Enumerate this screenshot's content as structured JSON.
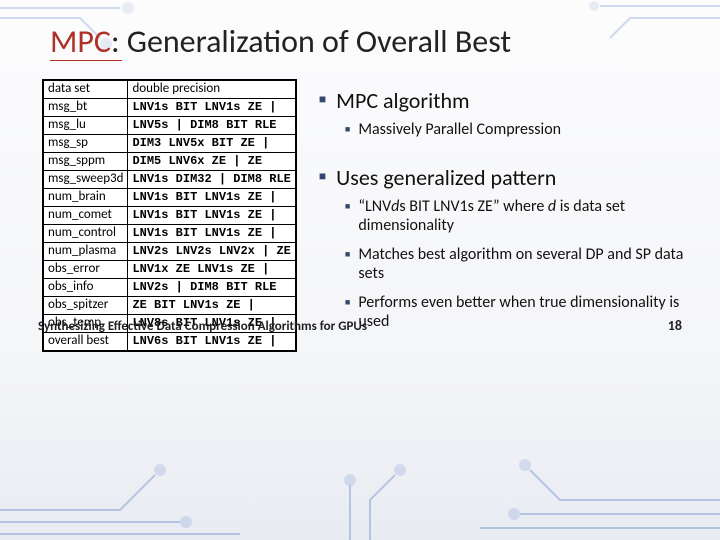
{
  "title_accent": "MPC",
  "title_rest": ": Generalization of Overall Best",
  "table": {
    "headers": [
      "data set",
      "double precision"
    ],
    "rows": [
      [
        "msg_bt",
        "LNV1s BIT LNV1s ZE |"
      ],
      [
        "msg_lu",
        "LNV5s | DIM8 BIT RLE"
      ],
      [
        "msg_sp",
        "DIM3 LNV5x BIT ZE |"
      ],
      [
        "msg_sppm",
        "DIM5 LNV6x ZE | ZE"
      ],
      [
        "msg_sweep3d",
        "LNV1s DIM32 | DIM8 RLE"
      ],
      [
        "num_brain",
        "LNV1s BIT LNV1s ZE |"
      ],
      [
        "num_comet",
        "LNV1s BIT LNV1s ZE |"
      ],
      [
        "num_control",
        "LNV1s BIT LNV1s ZE |"
      ],
      [
        "num_plasma",
        "LNV2s LNV2s LNV2x | ZE"
      ],
      [
        "obs_error",
        "LNV1x ZE LNV1s ZE |"
      ],
      [
        "obs_info",
        "LNV2s | DIM8 BIT RLE"
      ],
      [
        "obs_spitzer",
        "ZE BIT LNV1s ZE |"
      ],
      [
        "obs_temp",
        "LNV8s BIT LNV1s ZE |"
      ],
      [
        "overall best",
        "LNV6s BIT LNV1s ZE |"
      ]
    ]
  },
  "bullets": {
    "p1": "MPC algorithm",
    "p1a": "Massively Parallel Compression",
    "p2": "Uses generalized pattern",
    "p2a_html": "“LNV<i>d</i>s BIT LNV1s ZE” where <i>d</i> is data set dimensionality",
    "p2b": "Matches best algorithm on several DP and SP data sets",
    "p2c": "Performs even better when true dimensionality is used"
  },
  "footer": "Synthesizing Effective Data Compression Algorithms for GPUs",
  "page": "18",
  "colors": {
    "accent": "#b03028",
    "bullet_square": "#33476f",
    "circuit": "#3a63c0"
  }
}
